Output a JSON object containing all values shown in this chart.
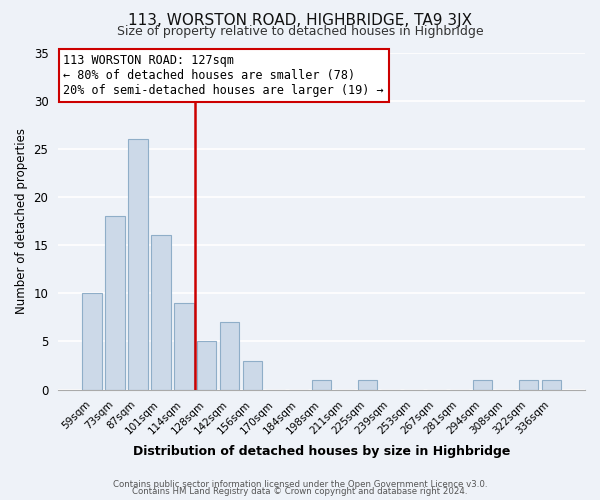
{
  "title": "113, WORSTON ROAD, HIGHBRIDGE, TA9 3JX",
  "subtitle": "Size of property relative to detached houses in Highbridge",
  "xlabel": "Distribution of detached houses by size in Highbridge",
  "ylabel": "Number of detached properties",
  "bar_labels": [
    "59sqm",
    "73sqm",
    "87sqm",
    "101sqm",
    "114sqm",
    "128sqm",
    "142sqm",
    "156sqm",
    "170sqm",
    "184sqm",
    "198sqm",
    "211sqm",
    "225sqm",
    "239sqm",
    "253sqm",
    "267sqm",
    "281sqm",
    "294sqm",
    "308sqm",
    "322sqm",
    "336sqm"
  ],
  "bar_values": [
    10,
    18,
    26,
    16,
    9,
    5,
    7,
    3,
    0,
    0,
    1,
    0,
    1,
    0,
    0,
    0,
    0,
    1,
    0,
    1,
    1
  ],
  "bar_color": "#ccd9e8",
  "bar_edge_color": "#8faec8",
  "vline_color": "#cc0000",
  "vline_x": 4.5,
  "annotation_title": "113 WORSTON ROAD: 127sqm",
  "annotation_line1": "← 80% of detached houses are smaller (78)",
  "annotation_line2": "20% of semi-detached houses are larger (19) →",
  "annotation_box_edgecolor": "#cc0000",
  "annotation_box_facecolor": "#ffffff",
  "ylim": [
    0,
    35
  ],
  "yticks": [
    0,
    5,
    10,
    15,
    20,
    25,
    30,
    35
  ],
  "footer1": "Contains HM Land Registry data © Crown copyright and database right 2024.",
  "footer2": "Contains public sector information licensed under the Open Government Licence v3.0.",
  "bg_color": "#eef2f8",
  "plot_bg_color": "#eef2f8"
}
